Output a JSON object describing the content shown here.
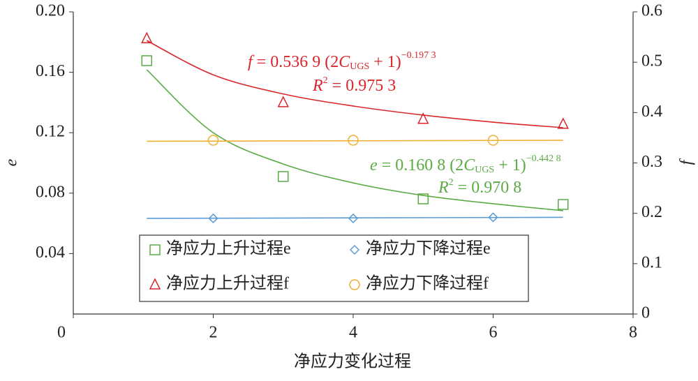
{
  "chart_data": {
    "type": "scatter",
    "x_label": "净应力变化过程",
    "y_label": "e",
    "y2_label": "f",
    "xlim": [
      0,
      8
    ],
    "xticks": [
      0,
      2,
      4,
      6,
      8
    ],
    "ylim": [
      0,
      0.2
    ],
    "yticks": [
      0.04,
      0.08,
      0.12,
      0.16,
      {
        "value": 0.2,
        "label": "0.20"
      }
    ],
    "y2lim": [
      0,
      0.6
    ],
    "y2ticks": [
      0,
      0.1,
      0.2,
      0.3,
      0.4,
      0.5,
      0.6
    ],
    "series": [
      {
        "name": "净应力上升过程e",
        "color": "#5aab46",
        "marker": "square",
        "axis": "y",
        "x": [
          1.05,
          3,
          5,
          7
        ],
        "values": [
          0.1677,
          0.091,
          0.0762,
          0.0725
        ]
      },
      {
        "name": "净应力下降过程e",
        "color": "#5b9bd5",
        "marker": "diamond",
        "axis": "y",
        "x": [
          2,
          4,
          6
        ],
        "values": [
          0.0633,
          0.0633,
          0.064
        ]
      },
      {
        "name": "净应力上升过程f",
        "color": "#d9262b",
        "marker": "triangle",
        "axis": "y2",
        "x": [
          1.05,
          3,
          5,
          7
        ],
        "values": [
          0.547,
          0.42,
          0.387,
          0.377
        ]
      },
      {
        "name": "净应力下降过程f",
        "color": "#f0b030",
        "marker": "circle",
        "axis": "y2",
        "x": [
          2,
          4,
          6
        ],
        "values": [
          0.345,
          0.345,
          0.345
        ]
      }
    ],
    "fits": [
      {
        "color": "#5aab46",
        "axis": "y",
        "x": [
          1.05,
          2,
          3,
          4,
          5,
          6,
          7
        ],
        "values": [
          0.1617,
          0.12,
          0.0993,
          0.0868,
          0.0785,
          0.073,
          0.0684
        ]
      },
      {
        "color": "#5b9bd5",
        "axis": "y",
        "x": [
          1.05,
          7
        ],
        "values": [
          0.0633,
          0.064
        ]
      },
      {
        "color": "#d9262b",
        "axis": "y2",
        "x": [
          1.05,
          2,
          3,
          4,
          5,
          6,
          7
        ],
        "values": [
          0.543,
          0.475,
          0.437,
          0.413,
          0.395,
          0.381,
          0.37
        ]
      },
      {
        "color": "#f0b030",
        "axis": "y2",
        "x": [
          1.05,
          7
        ],
        "values": [
          0.343,
          0.345
        ]
      }
    ],
    "annotations": [
      {
        "color": "#d9262b",
        "lhs": "f",
        "coef": " = 0.536 9 (2",
        "var": "C",
        "sub": "UGS",
        "rest": " + 1)",
        "exp": "−0.197 3",
        "r": "R",
        "rsup": "2",
        "rtext": " = 0.975 3"
      },
      {
        "color": "#5aab46",
        "lhs": "e",
        "coef": " = 0.160 8 (2",
        "var": "C",
        "sub": "UGS",
        "rest": " + 1)",
        "exp": "−0.442 8",
        "r": "R",
        "rsup": "2",
        "rtext": " = 0.970 8"
      }
    ]
  }
}
